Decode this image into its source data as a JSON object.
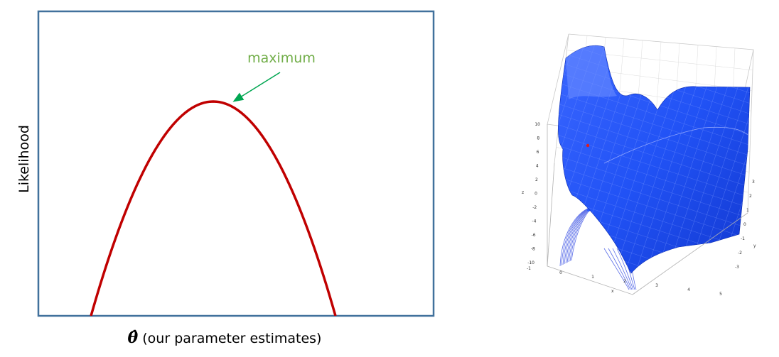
{
  "chart_data": [
    {
      "type": "line",
      "ylabel": "Likelihood",
      "xlabel_symbol": "θ̂",
      "xlabel_text": " (our parameter estimates)",
      "annotation": {
        "label": "maximum",
        "color": "#70ad47"
      },
      "curve_color": "#c00000",
      "frame_color": "#41719c",
      "grid": false,
      "x": [
        0.0,
        0.25,
        0.5,
        0.75,
        1.0
      ],
      "y": [
        0.0,
        0.75,
        1.0,
        0.75,
        0.0
      ],
      "peak": {
        "x": 0.5,
        "y": 1.0
      }
    },
    {
      "type": "surface3d",
      "surface_color": "#1f4fff",
      "contour_color": "#5b6ee8",
      "z_ticks": [
        "10",
        "8",
        "6",
        "4",
        "2",
        "0",
        "-2",
        "-4",
        "-6",
        "-8",
        "-10"
      ],
      "x_ticks": [
        "-1",
        "0",
        "1",
        "2",
        "3",
        "4",
        "5"
      ],
      "y_ticks": [
        "3",
        "2",
        "1",
        "0",
        "-1",
        "-2",
        "-3"
      ],
      "z_axis_letter": "z",
      "x_axis_letter": "x",
      "y_axis_letter": "y"
    }
  ]
}
